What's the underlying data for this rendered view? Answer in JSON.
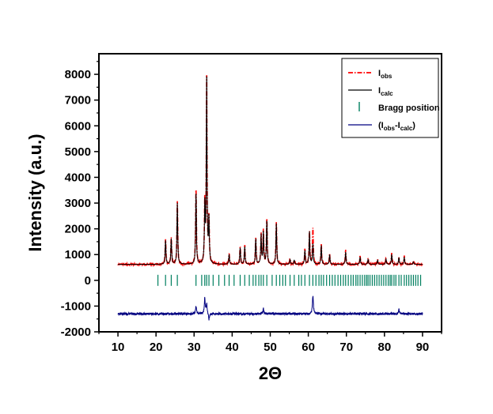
{
  "chart_data": {
    "type": "line",
    "title": "",
    "xlabel": "2Θ",
    "ylabel": "Intensity (a.u.)",
    "xlim": [
      5,
      95
    ],
    "ylim": [
      -2000,
      8800
    ],
    "x_ticks": [
      10,
      20,
      30,
      40,
      50,
      60,
      70,
      80,
      90
    ],
    "y_ticks": [
      -2000,
      -1000,
      0,
      1000,
      2000,
      3000,
      4000,
      5000,
      6000,
      7000,
      8000
    ],
    "x_tick_labels": [
      "10",
      "20",
      "30",
      "40",
      "50",
      "60",
      "70",
      "80",
      "90"
    ],
    "y_tick_labels": [
      "-2000",
      "-1000",
      "0",
      "1000",
      "2000",
      "3000",
      "4000",
      "5000",
      "6000",
      "7000",
      "8000"
    ],
    "grid": false,
    "legend_position": "top-right",
    "legend": [
      {
        "main": "I",
        "sub": "obs",
        "tail": "",
        "style": "dash-dot",
        "color": "#ff0000"
      },
      {
        "main": "I",
        "sub": "calc",
        "tail": "",
        "style": "solid",
        "color": "#000000"
      },
      {
        "main": "Bragg position",
        "sub": "",
        "tail": "",
        "style": "tick",
        "color": "#007f5f"
      },
      {
        "main": "(I",
        "sub": "obs",
        "mid": "-I",
        "sub2": "calc",
        "tail": ")",
        "style": "solid",
        "color": "#000080"
      }
    ],
    "baseline": 620,
    "peaks": [
      {
        "x": 22.5,
        "obs": 1600,
        "calc": 1550
      },
      {
        "x": 24.0,
        "obs": 1650,
        "calc": 1600
      },
      {
        "x": 25.6,
        "obs": 3050,
        "calc": 3000
      },
      {
        "x": 30.5,
        "obs": 3550,
        "calc": 3400
      },
      {
        "x": 32.8,
        "obs": 2850,
        "calc": 2800
      },
      {
        "x": 33.3,
        "obs": 7950,
        "calc": 7900
      },
      {
        "x": 33.9,
        "obs": 2350,
        "calc": 2300
      },
      {
        "x": 39.2,
        "obs": 1050,
        "calc": 1000
      },
      {
        "x": 42.1,
        "obs": 1300,
        "calc": 1250
      },
      {
        "x": 43.3,
        "obs": 1350,
        "calc": 1300
      },
      {
        "x": 46.2,
        "obs": 1650,
        "calc": 1600
      },
      {
        "x": 47.6,
        "obs": 1800,
        "calc": 1750
      },
      {
        "x": 48.2,
        "obs": 1900,
        "calc": 1850
      },
      {
        "x": 49.1,
        "obs": 2400,
        "calc": 2300
      },
      {
        "x": 51.6,
        "obs": 2250,
        "calc": 2200
      },
      {
        "x": 55.2,
        "obs": 850,
        "calc": 800
      },
      {
        "x": 56.3,
        "obs": 800,
        "calc": 780
      },
      {
        "x": 59.1,
        "obs": 1200,
        "calc": 1150
      },
      {
        "x": 60.3,
        "obs": 1900,
        "calc": 1900
      },
      {
        "x": 61.2,
        "obs": 2000,
        "calc": 1400
      },
      {
        "x": 63.4,
        "obs": 1400,
        "calc": 1350
      },
      {
        "x": 65.6,
        "obs": 1050,
        "calc": 1000
      },
      {
        "x": 69.8,
        "obs": 1150,
        "calc": 1100
      },
      {
        "x": 73.6,
        "obs": 950,
        "calc": 900
      },
      {
        "x": 75.7,
        "obs": 850,
        "calc": 820
      },
      {
        "x": 78.2,
        "obs": 800,
        "calc": 780
      },
      {
        "x": 80.4,
        "obs": 850,
        "calc": 820
      },
      {
        "x": 81.9,
        "obs": 1050,
        "calc": 1000
      },
      {
        "x": 83.8,
        "obs": 900,
        "calc": 880
      },
      {
        "x": 85.2,
        "obs": 950,
        "calc": 900
      },
      {
        "x": 87.6,
        "obs": 750,
        "calc": 720
      }
    ],
    "bragg_positions": [
      20.5,
      22.5,
      24.0,
      25.6,
      30.5,
      32.0,
      32.8,
      33.3,
      33.9,
      35.0,
      36.5,
      38.0,
      39.2,
      40.5,
      42.1,
      43.3,
      44.5,
      45.5,
      46.2,
      47.0,
      47.6,
      48.2,
      49.1,
      50.5,
      51.6,
      52.5,
      53.3,
      54.0,
      55.2,
      56.3,
      57.5,
      58.2,
      59.1,
      60.3,
      61.2,
      62.0,
      62.8,
      63.4,
      64.0,
      64.8,
      65.6,
      66.3,
      67.0,
      67.8,
      68.5,
      69.2,
      69.8,
      70.5,
      71.2,
      71.8,
      72.5,
      73.0,
      73.6,
      74.2,
      74.8,
      75.3,
      75.7,
      76.2,
      76.8,
      77.4,
      78.0,
      78.6,
      79.2,
      79.8,
      80.4,
      81.0,
      81.5,
      81.9,
      82.5,
      83.0,
      83.8,
      84.4,
      85.2,
      85.8,
      86.4,
      87.0,
      87.6,
      88.2,
      88.8,
      89.5
    ],
    "bragg_level": 0,
    "difference_offset": -1300,
    "difference_features": [
      {
        "x": 30.5,
        "y": -1000
      },
      {
        "x": 32.8,
        "y": -700
      },
      {
        "x": 33.3,
        "y": -900
      },
      {
        "x": 33.9,
        "y": -1550
      },
      {
        "x": 48.2,
        "y": -1100
      },
      {
        "x": 61.2,
        "y": -600
      },
      {
        "x": 83.8,
        "y": -1150
      }
    ]
  }
}
